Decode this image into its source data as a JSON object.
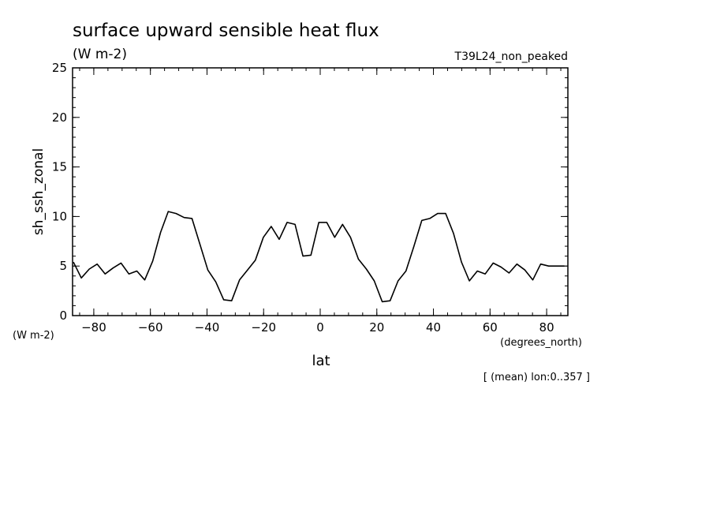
{
  "chart_data": {
    "type": "line",
    "title": "surface upward sensible heat flux",
    "units": "(W m-2)",
    "experiment": "T39L24_non_peaked",
    "ylabel": "sh_ssh_zonal",
    "y_units": "(W m-2)",
    "xlabel": "lat",
    "x_units": "(degrees_north)",
    "footnote": "[ (mean) lon:0..357 ]",
    "xlim": [
      -87.5,
      87.5
    ],
    "ylim": [
      0,
      25
    ],
    "x_ticks": [
      -80,
      -60,
      -40,
      -20,
      0,
      20,
      40,
      60,
      80
    ],
    "x_tick_labels": [
      "−80",
      "−60",
      "−40",
      "−20",
      "0",
      "20",
      "40",
      "60",
      "80"
    ],
    "y_ticks": [
      0,
      5,
      10,
      15,
      20,
      25
    ],
    "y_tick_labels": [
      "0",
      "5",
      "10",
      "15",
      "20",
      "25"
    ],
    "grid": false,
    "series": [
      {
        "x": [
          -87.2,
          -84.4,
          -81.6,
          -78.8,
          -76.0,
          -73.2,
          -70.4,
          -67.6,
          -64.8,
          -62.0,
          -59.2,
          -56.4,
          -53.7,
          -50.9,
          -48.1,
          -45.3,
          -42.5,
          -39.7,
          -36.9,
          -34.1,
          -31.3,
          -28.5,
          -25.7,
          -22.9,
          -20.1,
          -17.3,
          -14.5,
          -11.7,
          -8.9,
          -6.1,
          -3.3,
          -0.5,
          2.3,
          5.1,
          7.9,
          10.7,
          13.5,
          16.3,
          19.1,
          21.9,
          24.7,
          27.5,
          30.3,
          33.1,
          35.9,
          38.7,
          41.5,
          44.3,
          47.1,
          49.9,
          52.7,
          55.5,
          58.3,
          61.1,
          63.9,
          66.7,
          69.5,
          72.3,
          75.1,
          77.9,
          80.7,
          83.5,
          86.3
        ],
        "values": [
          5.4,
          3.8,
          4.7,
          5.2,
          4.2,
          4.8,
          5.3,
          4.2,
          4.5,
          3.6,
          5.5,
          8.4,
          10.5,
          10.3,
          9.9,
          9.8,
          7.2,
          4.6,
          3.4,
          1.6,
          1.5,
          3.6,
          4.6,
          5.6,
          7.9,
          9.0,
          7.7,
          9.4,
          9.2,
          6.0,
          6.1,
          9.4,
          9.4,
          7.9,
          9.2,
          7.9,
          5.7,
          4.7,
          3.5,
          1.4,
          1.5,
          3.5,
          4.5,
          7.0,
          9.6,
          9.8,
          10.3,
          10.3,
          8.3,
          5.4,
          3.5,
          4.5,
          4.2,
          5.3,
          4.9,
          4.3,
          5.2,
          4.6,
          3.6,
          5.2,
          5.0,
          5.0,
          5.0
        ]
      }
    ]
  }
}
